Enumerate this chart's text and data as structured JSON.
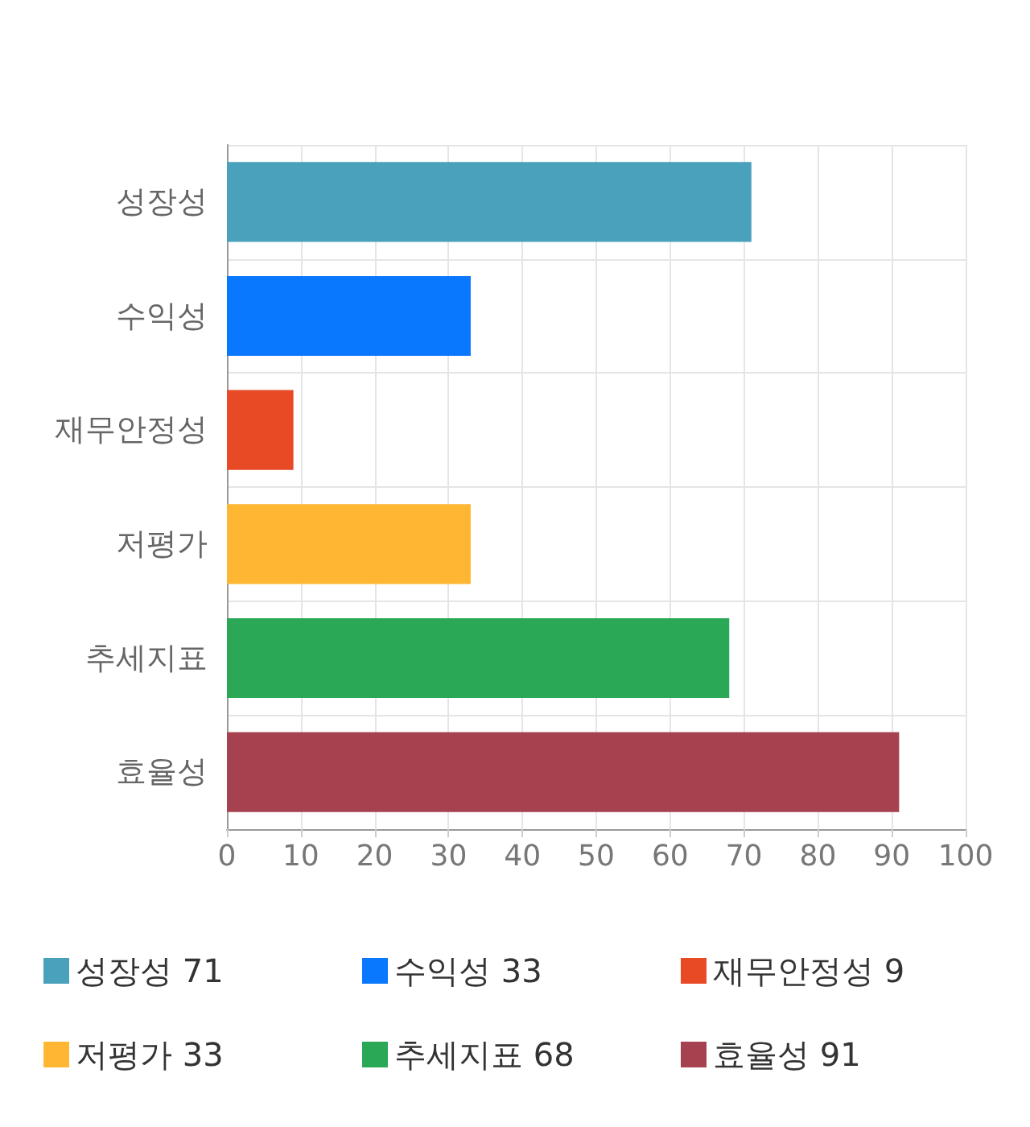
{
  "chart_data": {
    "type": "bar",
    "orientation": "horizontal",
    "stacked": true,
    "categories": [
      "성장성",
      "수익성",
      "재무안정성",
      "저평가",
      "추세지표",
      "효율성"
    ],
    "series": [
      {
        "name": "성장성 71",
        "color": "#4aa1bb",
        "values": [
          71,
          null,
          null,
          null,
          null,
          null
        ]
      },
      {
        "name": "수익성 33",
        "color": "#0a77ff",
        "values": [
          null,
          33,
          null,
          null,
          null,
          null
        ]
      },
      {
        "name": "재무안정성 9",
        "color": "#e84a26",
        "values": [
          null,
          null,
          9,
          null,
          null,
          null
        ]
      },
      {
        "name": "저평가 33",
        "color": "#ffb733",
        "values": [
          null,
          null,
          null,
          33,
          null,
          null
        ]
      },
      {
        "name": "추세지표 68",
        "color": "#2aa856",
        "values": [
          null,
          null,
          null,
          null,
          68,
          null
        ]
      },
      {
        "name": "효율성 91",
        "color": "#a6424f",
        "values": [
          null,
          null,
          null,
          null,
          null,
          91
        ]
      }
    ],
    "xlim": [
      0,
      100
    ],
    "xticks": [
      0,
      10,
      20,
      30,
      40,
      50,
      60,
      70,
      80,
      90,
      100
    ],
    "grid": true,
    "legend": "bottom"
  }
}
